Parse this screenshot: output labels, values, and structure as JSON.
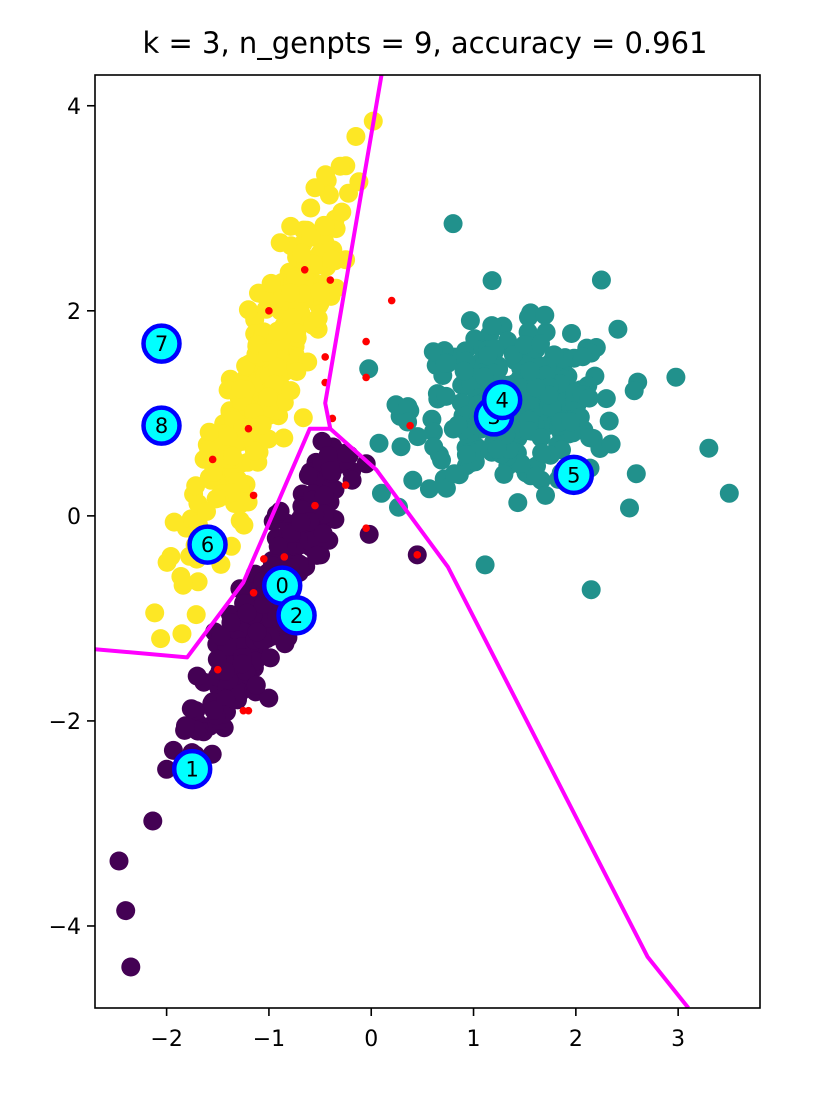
{
  "chart_data": {
    "type": "scatter",
    "title": "k = 3, n_genpts = 9, accuracy = 0.961",
    "xlabel": "",
    "ylabel": "",
    "xlim": [
      -2.7,
      3.8
    ],
    "ylim": [
      -4.8,
      4.3
    ],
    "xticks": [
      -2,
      -1,
      0,
      1,
      2,
      3
    ],
    "yticks": [
      -4,
      -2,
      0,
      2,
      4
    ],
    "xtick_labels": [
      "−2",
      "−1",
      "0",
      "1",
      "2",
      "3"
    ],
    "ytick_labels": [
      "−4",
      "−2",
      "0",
      "2",
      "4"
    ],
    "grid": false,
    "legend": "none",
    "colors": {
      "class_0": "#440154",
      "class_1": "#21918c",
      "class_2": "#fde725",
      "boundary": "#ff00ff",
      "generated_fill": "#00ffff",
      "generated_edge": "#0000ff",
      "misclassified": "#ff0000"
    },
    "clusters": [
      {
        "name": "class_0",
        "color": "#440154",
        "count": 300,
        "center": [
          -1.0,
          -0.8
        ],
        "direction": [
          0.45,
          0.89
        ],
        "spread_long": 0.85,
        "spread_wide": 0.13,
        "range_long": [
          -4.2,
          1.6
        ]
      },
      {
        "name": "class_1",
        "color": "#21918c",
        "count": 300,
        "center": [
          1.4,
          1.05
        ],
        "direction": [
          1.0,
          0.0
        ],
        "spread_long": 0.5,
        "spread_wide": 0.38,
        "range_long": [
          -2.0,
          4.5
        ]
      },
      {
        "name": "class_2",
        "color": "#fde725",
        "count": 300,
        "center": [
          -1.05,
          1.3
        ],
        "direction": [
          0.36,
          0.93
        ],
        "spread_long": 0.95,
        "spread_wide": 0.17,
        "range_long": [
          -2.7,
          2.7
        ]
      }
    ],
    "outliers": [
      {
        "x": 0.45,
        "y": -0.38,
        "cls": "class_0"
      },
      {
        "x": -0.02,
        "y": -0.18,
        "cls": "class_0"
      },
      {
        "x": 0.1,
        "y": 0.22,
        "cls": "class_1"
      },
      {
        "x": 3.5,
        "y": 0.22,
        "cls": "class_1"
      },
      {
        "x": 3.3,
        "y": 0.66,
        "cls": "class_1"
      },
      {
        "x": 2.25,
        "y": 2.3,
        "cls": "class_1"
      },
      {
        "x": 0.8,
        "y": 2.85,
        "cls": "class_1"
      },
      {
        "x": 2.15,
        "y": -0.72,
        "cls": "class_1"
      },
      {
        "x": -0.15,
        "y": 3.7,
        "cls": "class_2"
      },
      {
        "x": 0.02,
        "y": 3.85,
        "cls": "class_2"
      },
      {
        "x": -0.55,
        "y": 3.2,
        "cls": "class_2"
      },
      {
        "x": -1.85,
        "y": -1.15,
        "cls": "class_2"
      },
      {
        "x": -2.35,
        "y": -4.4,
        "cls": "class_0"
      },
      {
        "x": -2.4,
        "y": -3.85,
        "cls": "class_0"
      }
    ],
    "misclassified_points": [
      {
        "x": -1.0,
        "y": 2.0
      },
      {
        "x": -0.65,
        "y": 2.4
      },
      {
        "x": -0.4,
        "y": 2.3
      },
      {
        "x": 0.2,
        "y": 2.1
      },
      {
        "x": -0.45,
        "y": 1.55
      },
      {
        "x": -0.05,
        "y": 1.7
      },
      {
        "x": -0.45,
        "y": 1.3
      },
      {
        "x": -0.05,
        "y": 1.35
      },
      {
        "x": -1.2,
        "y": 0.85
      },
      {
        "x": -0.38,
        "y": 0.95
      },
      {
        "x": 0.38,
        "y": 0.88
      },
      {
        "x": -1.55,
        "y": 0.55
      },
      {
        "x": -1.15,
        "y": 0.2
      },
      {
        "x": -0.25,
        "y": 0.3
      },
      {
        "x": -0.55,
        "y": 0.1
      },
      {
        "x": -1.05,
        "y": -0.42
      },
      {
        "x": -0.85,
        "y": -0.4
      },
      {
        "x": -1.15,
        "y": -0.75
      },
      {
        "x": -0.05,
        "y": -0.12
      },
      {
        "x": 0.45,
        "y": -0.38
      },
      {
        "x": -1.5,
        "y": -1.5
      },
      {
        "x": -1.25,
        "y": -1.9
      },
      {
        "x": -1.2,
        "y": -1.9
      }
    ],
    "boundaries": [
      [
        [
          0.1,
          4.3
        ],
        [
          -0.45,
          1.1
        ],
        [
          -0.4,
          0.85
        ],
        [
          0.05,
          0.45
        ],
        [
          0.75,
          -0.5
        ],
        [
          2.7,
          -4.3
        ],
        [
          3.1,
          -4.8
        ]
      ],
      [
        [
          -0.4,
          0.85
        ],
        [
          -0.6,
          0.85
        ],
        [
          -1.25,
          -0.65
        ],
        [
          -1.8,
          -1.38
        ],
        [
          -2.7,
          -1.3
        ]
      ]
    ],
    "generated_points": [
      {
        "label": "0",
        "x": -0.87,
        "y": -0.68
      },
      {
        "label": "1",
        "x": -1.75,
        "y": -2.47
      },
      {
        "label": "2",
        "x": -0.73,
        "y": -0.97
      },
      {
        "label": "3",
        "x": 1.2,
        "y": 0.97
      },
      {
        "label": "4",
        "x": 1.28,
        "y": 1.13
      },
      {
        "label": "5",
        "x": 1.98,
        "y": 0.4
      },
      {
        "label": "6",
        "x": -1.6,
        "y": -0.28
      },
      {
        "label": "7",
        "x": -2.05,
        "y": 1.68
      },
      {
        "label": "8",
        "x": -2.05,
        "y": 0.88
      }
    ]
  }
}
